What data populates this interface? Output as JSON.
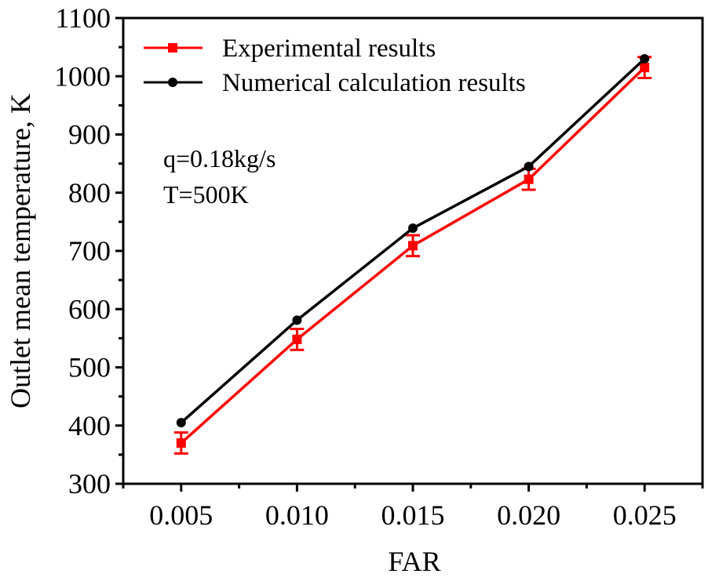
{
  "chart_data": {
    "type": "line",
    "title": "",
    "xlabel": "FAR",
    "ylabel": "Outlet mean temperature, K",
    "x": [
      0.005,
      0.01,
      0.015,
      0.02,
      0.025
    ],
    "x_tick_labels": [
      "0.005",
      "0.010",
      "0.015",
      "0.020",
      "0.025"
    ],
    "xlim": [
      0.0025,
      0.0275
    ],
    "ylim": [
      300,
      1100
    ],
    "y_ticks": [
      300,
      400,
      500,
      600,
      700,
      800,
      900,
      1000,
      1100
    ],
    "y_tick_labels": [
      "300",
      "400",
      "500",
      "600",
      "700",
      "800",
      "900",
      "1000",
      "1100"
    ],
    "grid": false,
    "legend_position": "top-left",
    "series": [
      {
        "name": "Experimental results",
        "color": "#ff0000",
        "marker": "square",
        "values": [
          370,
          548,
          709,
          823,
          1015
        ],
        "error": [
          18,
          18,
          18,
          18,
          18
        ]
      },
      {
        "name": "Numerical calculation results",
        "color": "#000000",
        "marker": "circle",
        "values": [
          405,
          581,
          739,
          845,
          1030
        ]
      }
    ],
    "annotations": [
      "q=0.18kg/s",
      "T=500K"
    ]
  }
}
